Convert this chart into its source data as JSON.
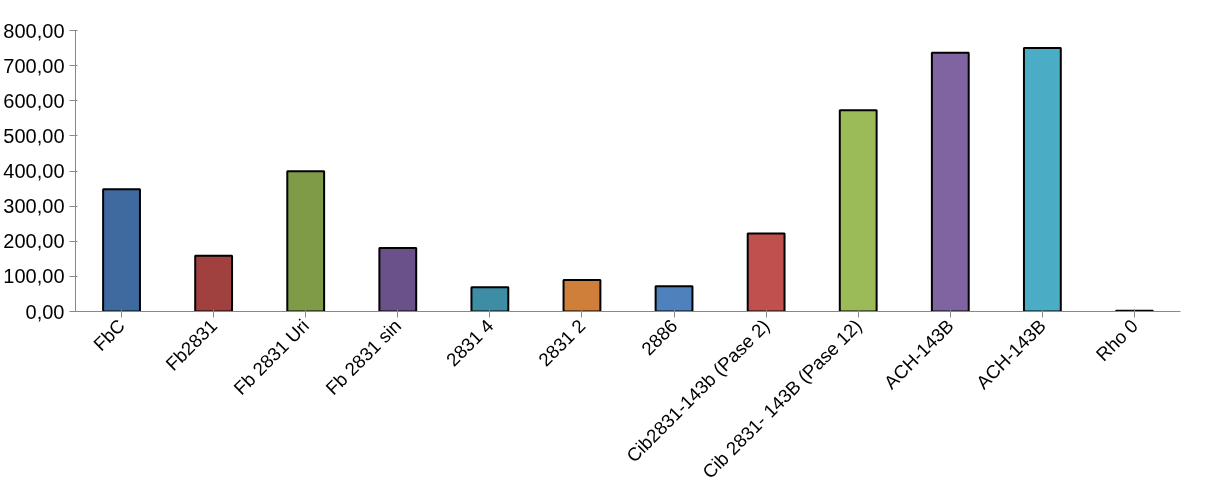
{
  "chart_data": {
    "type": "bar",
    "categories": [
      "FbC",
      "Fb2831",
      "Fb 2831 Uri",
      "Fb 2831 sin",
      "2831 4",
      "2831 2",
      "2886",
      "Cib2831-143b (Pase 2)",
      "Cib 2831- 143B (Pase 12)",
      "ACH-143B",
      "ACH-143B",
      "Rho 0"
    ],
    "values": [
      348,
      159,
      399,
      181,
      69,
      90,
      72,
      222,
      573,
      737,
      750,
      2
    ],
    "colors": [
      "#3f6aa0",
      "#a04140",
      "#7f9b48",
      "#6a518a",
      "#3d8ea5",
      "#d07f3b",
      "#4f81bd",
      "#c0504d",
      "#9bbb59",
      "#8064a2",
      "#4bacc6",
      "#4f81bd"
    ],
    "ylim": [
      0,
      800
    ],
    "yticks": [
      {
        "value": 0,
        "label": "0,00"
      },
      {
        "value": 100,
        "label": "100,00"
      },
      {
        "value": 200,
        "label": "200,00"
      },
      {
        "value": 300,
        "label": "300,00"
      },
      {
        "value": 400,
        "label": "400,00"
      },
      {
        "value": 500,
        "label": "500,00"
      },
      {
        "value": 600,
        "label": "600,00"
      },
      {
        "value": 700,
        "label": "700,00"
      },
      {
        "value": 800,
        "label": "800,00"
      }
    ],
    "grid": false
  }
}
